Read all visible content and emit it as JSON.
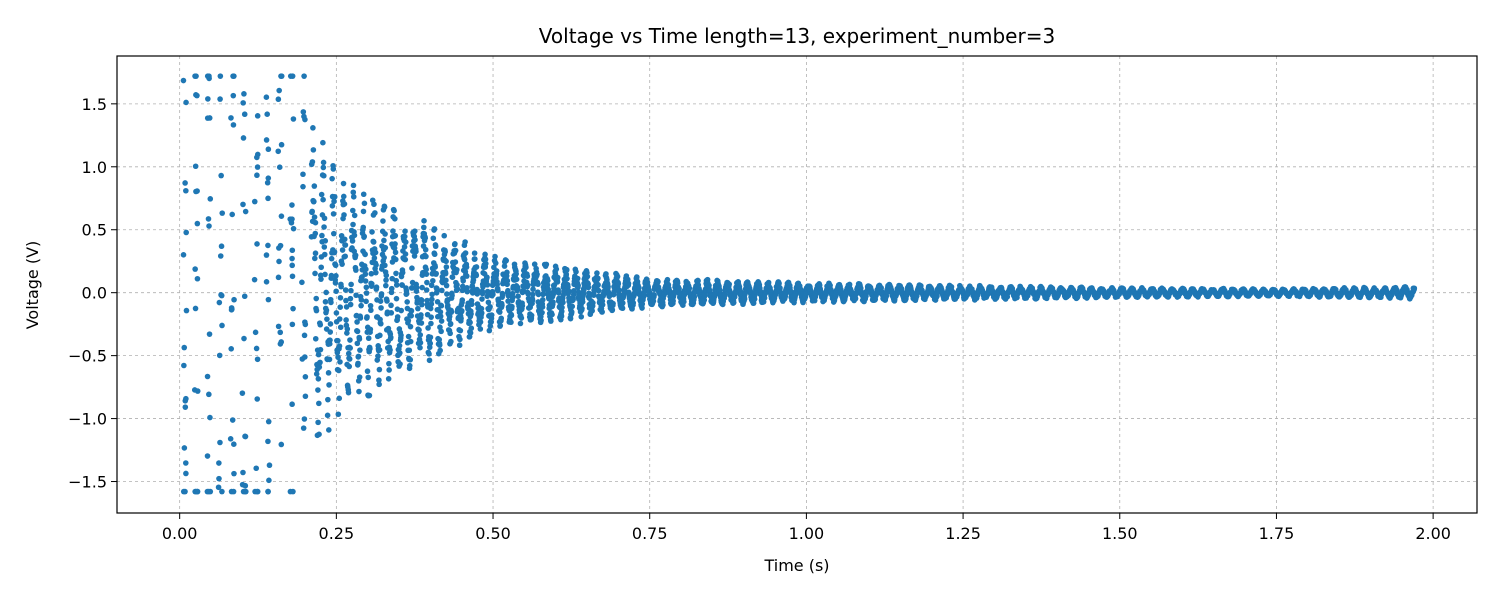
{
  "chart_data": {
    "type": "scatter",
    "title": "Voltage vs Time length=13, experiment_number=3",
    "xlabel": "Time (s)",
    "ylabel": "Voltage (V)",
    "xlim": [
      -0.1,
      2.07
    ],
    "ylim": [
      -1.75,
      1.88
    ],
    "xticks": [
      0.0,
      0.25,
      0.5,
      0.75,
      1.0,
      1.25,
      1.5,
      1.75,
      2.0
    ],
    "xtick_labels": [
      "0.00",
      "0.25",
      "0.50",
      "0.75",
      "1.00",
      "1.25",
      "1.50",
      "1.75",
      "2.00"
    ],
    "yticks": [
      -1.5,
      -1.0,
      -0.5,
      0.0,
      0.5,
      1.0,
      1.5
    ],
    "ytick_labels": [
      "−1.5",
      "−1.0",
      "−0.5",
      "0.0",
      "0.5",
      "1.0",
      "1.5"
    ],
    "grid": true,
    "series_color": "#1f77b4",
    "series": [
      {
        "description": "damped oscillating voltage, clipped at 1.72 V and -1.58 V, decaying to near 0 by ~2 s",
        "x_range": [
          0.0,
          1.97
        ],
        "clip_max": 1.72,
        "clip_min": -1.58,
        "envelope": [
          {
            "t": 0.0,
            "amp": 1.72
          },
          {
            "t": 0.2,
            "amp": 1.55
          },
          {
            "t": 0.25,
            "amp": 1.0
          },
          {
            "t": 0.3,
            "amp": 0.85
          },
          {
            "t": 0.4,
            "amp": 0.55
          },
          {
            "t": 0.5,
            "amp": 0.3
          },
          {
            "t": 0.75,
            "amp": 0.12
          },
          {
            "t": 1.0,
            "amp": 0.08
          },
          {
            "t": 1.25,
            "amp": 0.06
          },
          {
            "t": 1.5,
            "amp": 0.04
          },
          {
            "t": 1.75,
            "amp": 0.03
          },
          {
            "t": 1.97,
            "amp": 0.05
          }
        ]
      }
    ]
  }
}
